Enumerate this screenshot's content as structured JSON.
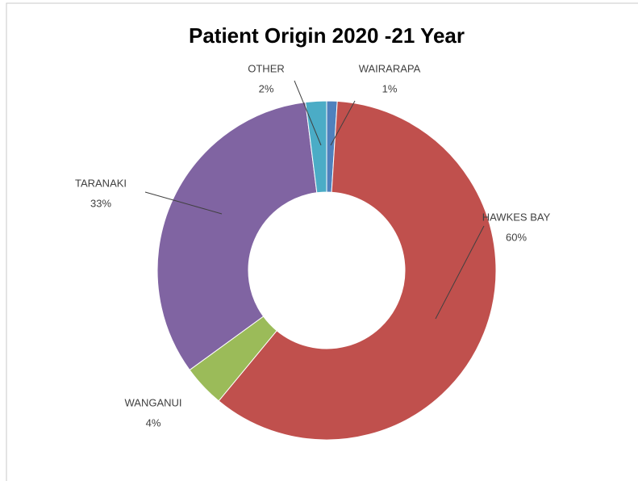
{
  "chart_data": {
    "type": "donut",
    "title": "Patient Origin 2020 -21 Year",
    "categories": [
      "WAIRARAPA",
      "HAWKES BAY",
      "WANGANUI",
      "TARANAKI",
      "OTHER"
    ],
    "values": [
      1,
      60,
      4,
      33,
      2
    ],
    "value_labels": [
      "1%",
      "60%",
      "4%",
      "33%",
      "2%"
    ],
    "colors": [
      "#4f81bd",
      "#c0504d",
      "#9bbb59",
      "#8064a2",
      "#4bacc6"
    ]
  }
}
